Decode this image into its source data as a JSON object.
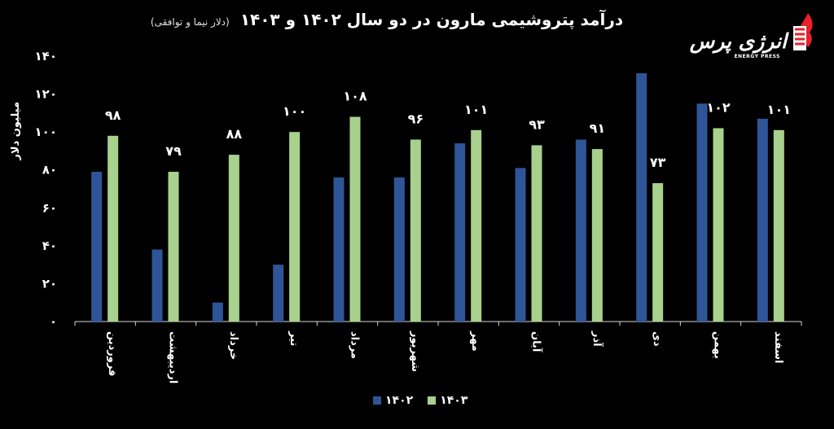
{
  "chart_data": {
    "type": "bar",
    "title": "درآمد پتروشیمی مارون در دو سال ۱۴۰۲ و ۱۴۰۳",
    "subtitle": "(دلار نیما و توافقی)",
    "ylabel": "میلیون دلار",
    "xlabel": "",
    "ylim": [
      0,
      140
    ],
    "yticks": [
      {
        "value": 0,
        "label": "۰"
      },
      {
        "value": 20,
        "label": "۲۰"
      },
      {
        "value": 40,
        "label": "۴۰"
      },
      {
        "value": 60,
        "label": "۶۰"
      },
      {
        "value": 80,
        "label": "۸۰"
      },
      {
        "value": 100,
        "label": "۱۰۰"
      },
      {
        "value": 120,
        "label": "۱۲۰"
      },
      {
        "value": 140,
        "label": "۱۴۰"
      }
    ],
    "categories": [
      "فروردین",
      "اردیبهشت",
      "خرداد",
      "تیر",
      "مرداد",
      "شهریور",
      "مهر",
      "آبان",
      "آذر",
      "دی",
      "بهمن",
      "اسفند"
    ],
    "series": [
      {
        "name": "۱۴۰۲",
        "color": "#2e5597",
        "values": [
          79,
          38,
          10,
          30,
          76,
          76,
          94,
          81,
          96,
          131,
          115,
          107
        ]
      },
      {
        "name": "۱۴۰۳",
        "color": "#a9d18e",
        "values": [
          98,
          79,
          88,
          100,
          108,
          96,
          101,
          93,
          91,
          73,
          102,
          101
        ]
      }
    ],
    "data_labels": [
      "۹۸",
      "۷۹",
      "۸۸",
      "۱۰۰",
      "۱۰۸",
      "۹۶",
      "۱۰۱",
      "۹۳",
      "۹۱",
      "۷۳",
      "۱۰۲",
      "۱۰۱"
    ],
    "legend_position": "bottom",
    "grid": false
  },
  "logo": {
    "text": "انرژی پرس",
    "subtext": "ENERGY PRESS"
  }
}
